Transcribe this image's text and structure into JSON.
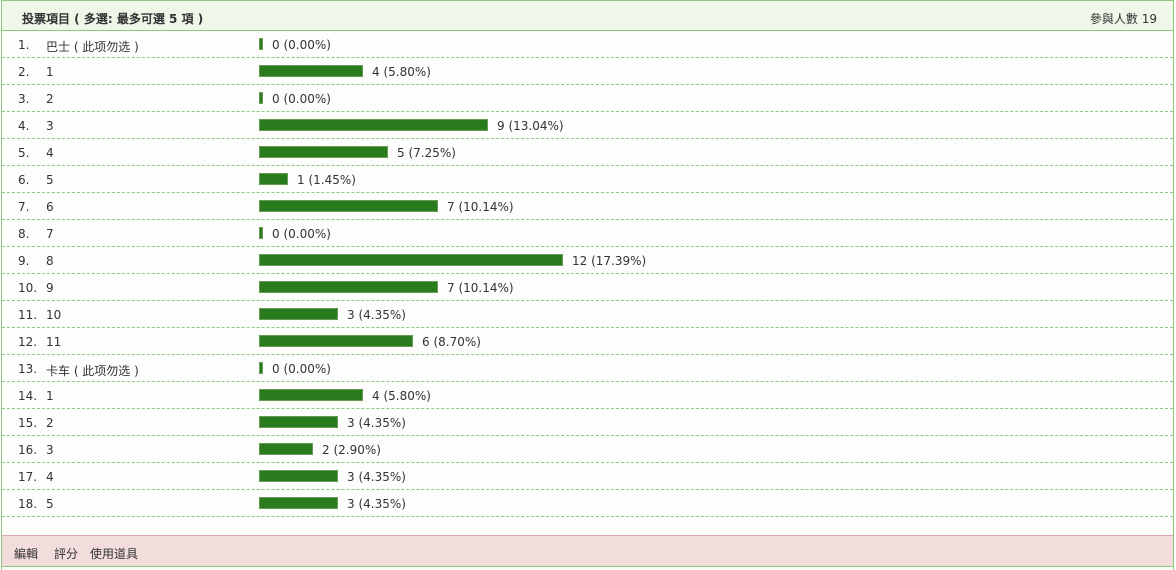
{
  "header": {
    "title": "投票項目 ( 多選: 最多可選 5 項 )",
    "participants": "參與人數 19"
  },
  "rows": [
    {
      "number": "1.",
      "option": "巴士 ( 此项勿选 )",
      "votes": 0,
      "label": "0 (0.00%)"
    },
    {
      "number": "2.",
      "option": "1",
      "votes": 4,
      "label": "4 (5.80%)"
    },
    {
      "number": "3.",
      "option": "2",
      "votes": 0,
      "label": "0 (0.00%)"
    },
    {
      "number": "4.",
      "option": "3",
      "votes": 9,
      "label": "9 (13.04%)"
    },
    {
      "number": "5.",
      "option": "4",
      "votes": 5,
      "label": "5 (7.25%)"
    },
    {
      "number": "6.",
      "option": "5",
      "votes": 1,
      "label": "1 (1.45%)"
    },
    {
      "number": "7.",
      "option": "6",
      "votes": 7,
      "label": "7 (10.14%)"
    },
    {
      "number": "8.",
      "option": "7",
      "votes": 0,
      "label": "0 (0.00%)"
    },
    {
      "number": "9.",
      "option": "8",
      "votes": 12,
      "label": "12 (17.39%)"
    },
    {
      "number": "10.",
      "option": "9",
      "votes": 7,
      "label": "7 (10.14%)"
    },
    {
      "number": "11.",
      "option": "10",
      "votes": 3,
      "label": "3 (4.35%)"
    },
    {
      "number": "12.",
      "option": "11",
      "votes": 6,
      "label": "6 (8.70%)"
    },
    {
      "number": "13.",
      "option": "卡车 ( 此项勿选 )",
      "votes": 0,
      "label": "0 (0.00%)"
    },
    {
      "number": "14.",
      "option": "1",
      "votes": 4,
      "label": "4 (5.80%)"
    },
    {
      "number": "15.",
      "option": "2",
      "votes": 3,
      "label": "3 (4.35%)"
    },
    {
      "number": "16.",
      "option": "3",
      "votes": 2,
      "label": "2 (2.90%)"
    },
    {
      "number": "17.",
      "option": "4",
      "votes": 3,
      "label": "3 (4.35%)"
    },
    {
      "number": "18.",
      "option": "5",
      "votes": 3,
      "label": "3 (4.35%)"
    }
  ],
  "footer": {
    "actions": [
      "編輯",
      "評分",
      "使用道具"
    ]
  }
}
